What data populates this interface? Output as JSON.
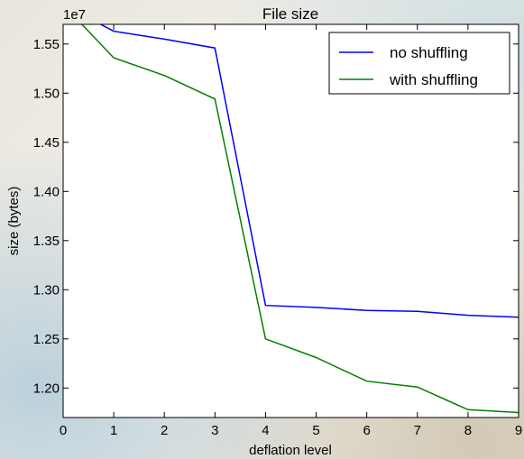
{
  "chart_data": {
    "type": "line",
    "title": "File size",
    "xlabel": "deflation level",
    "ylabel": "size (bytes)",
    "offset_label": "1e7",
    "xlim": [
      0,
      9
    ],
    "ylim": [
      1.17,
      1.57
    ],
    "x_ticks": [
      "0",
      "1",
      "2",
      "3",
      "4",
      "5",
      "6",
      "7",
      "8",
      "9"
    ],
    "y_ticks": [
      "1.20",
      "1.25",
      "1.30",
      "1.35",
      "1.40",
      "1.45",
      "1.50",
      "1.55"
    ],
    "grid": false,
    "legend_position": "top-right",
    "x": [
      0,
      1,
      2,
      3,
      4,
      5,
      6,
      7,
      8,
      9
    ],
    "series": [
      {
        "name": "no shuffling",
        "color": "#0000ff",
        "values": [
          1.59,
          1.563,
          1.555,
          1.546,
          1.284,
          1.282,
          1.279,
          1.278,
          1.274,
          1.272
        ]
      },
      {
        "name": "with shuffling",
        "color": "#008000",
        "values": [
          1.59,
          1.536,
          1.518,
          1.494,
          1.25,
          1.231,
          1.207,
          1.201,
          1.178,
          1.175
        ]
      }
    ]
  }
}
